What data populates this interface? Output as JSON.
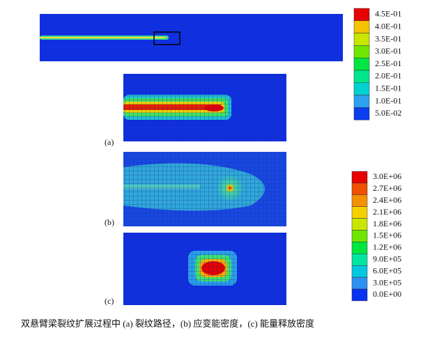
{
  "legend_top": {
    "labels": [
      "4.5E-01",
      "4.0E-01",
      "3.5E-01",
      "3.0E-01",
      "2.5E-01",
      "2.0E-01",
      "1.5E-01",
      "1.0E-01",
      "5.0E-02"
    ]
  },
  "legend_bottom": {
    "labels": [
      "3.0E+06",
      "2.7E+06",
      "2.4E+06",
      "2.1E+06",
      "1.8E+06",
      "1.5E+06",
      "1.2E+06",
      "9.0E+05",
      "6.0E+05",
      "3.0E+05",
      "0.0E+00"
    ]
  },
  "panels": [
    {
      "label": "(a)"
    },
    {
      "label": "(b)"
    },
    {
      "label": "(c)"
    }
  ],
  "caption": "双悬臂梁裂纹扩展过程中 (a) 裂纹路径，(b) 应变能密度，(c) 能量释放密度"
}
